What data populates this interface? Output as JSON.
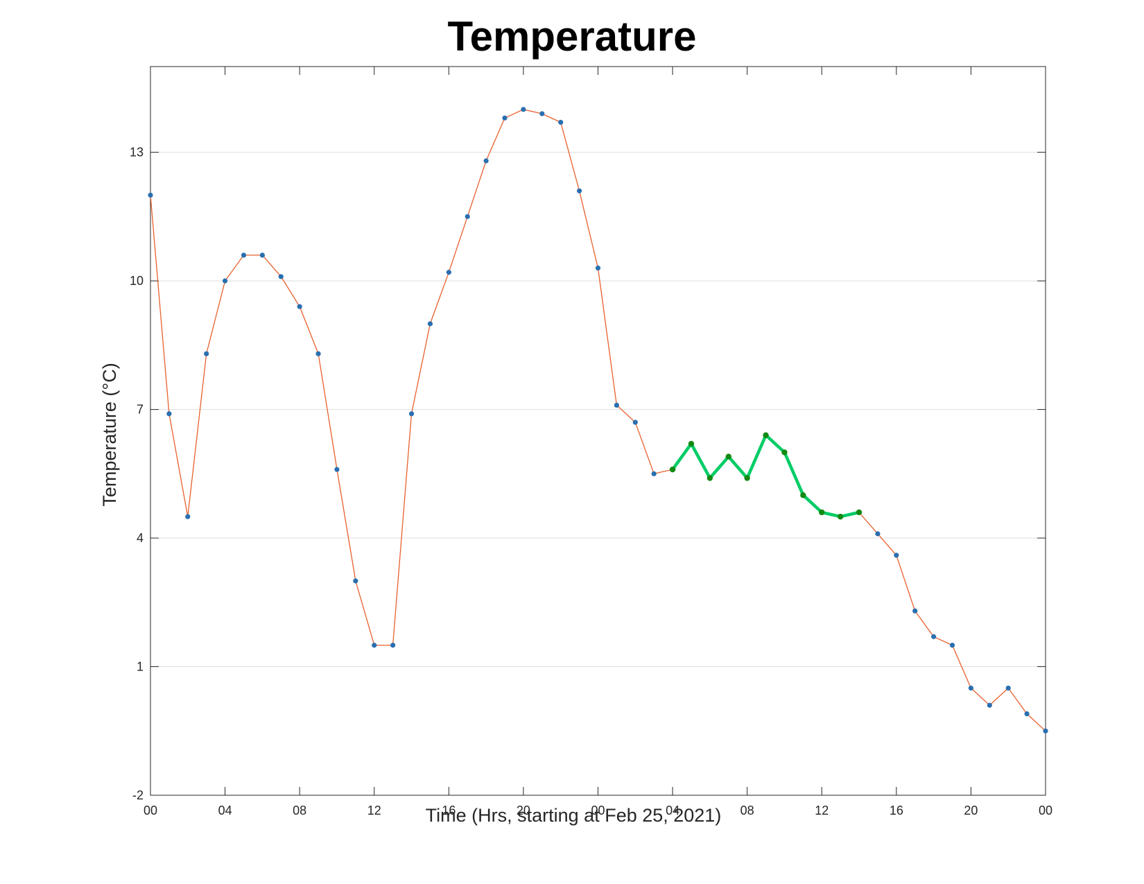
{
  "chart_data": {
    "type": "line",
    "title": "Temperature",
    "xlabel": "Time (Hrs, starting at Feb 25, 2021)",
    "ylabel": "Temperature (°C)",
    "xlim": [
      0,
      48
    ],
    "ylim": [
      -2,
      15
    ],
    "x_ticks": [
      0,
      4,
      8,
      12,
      16,
      20,
      24,
      28,
      32,
      36,
      40,
      44,
      48
    ],
    "x_tick_labels": [
      "00",
      "04",
      "08",
      "12",
      "16",
      "20",
      "00",
      "04",
      "08",
      "12",
      "16",
      "20",
      "00"
    ],
    "y_ticks": [
      -2,
      1,
      4,
      7,
      10,
      13
    ],
    "y_tick_labels": [
      "-2",
      "1",
      "4",
      "7",
      "10",
      "13"
    ],
    "grid": "horizontal",
    "series": [
      {
        "color": "#e8602c",
        "marker_color": "#2a6fb0",
        "x": [
          0,
          1,
          2,
          3,
          4,
          5,
          6,
          7,
          8,
          9,
          10,
          11,
          12,
          13,
          14,
          15,
          16,
          17,
          18,
          19,
          20,
          21,
          22,
          23,
          24,
          25,
          26,
          27,
          28,
          29,
          30,
          31,
          32,
          33,
          34,
          35,
          36,
          37,
          38,
          39,
          40,
          41,
          42,
          43,
          44,
          45,
          46,
          47,
          48
        ],
        "values": [
          12.0,
          6.9,
          4.5,
          8.3,
          10.0,
          10.6,
          10.6,
          10.1,
          9.4,
          8.3,
          5.6,
          3.0,
          1.5,
          1.5,
          6.9,
          9.0,
          10.2,
          11.5,
          12.8,
          13.8,
          14.0,
          13.9,
          13.7,
          12.1,
          10.3,
          7.1,
          6.7,
          5.5,
          5.6,
          6.2,
          5.4,
          5.9,
          5.4,
          6.4,
          6.0,
          5.0,
          4.6,
          4.5,
          4.6,
          4.1,
          3.6,
          2.3,
          1.7,
          1.5,
          0.5,
          0.1,
          0.5,
          -0.1,
          -0.5
        ]
      },
      {
        "color": "#00cc66",
        "marker_color": "#138a13",
        "x": [
          28,
          29,
          30,
          31,
          32,
          33,
          34,
          35,
          36,
          37,
          38
        ],
        "values": [
          5.6,
          6.2,
          5.4,
          5.9,
          5.4,
          6.4,
          6.0,
          5.0,
          4.6,
          4.5,
          4.6
        ]
      }
    ]
  }
}
